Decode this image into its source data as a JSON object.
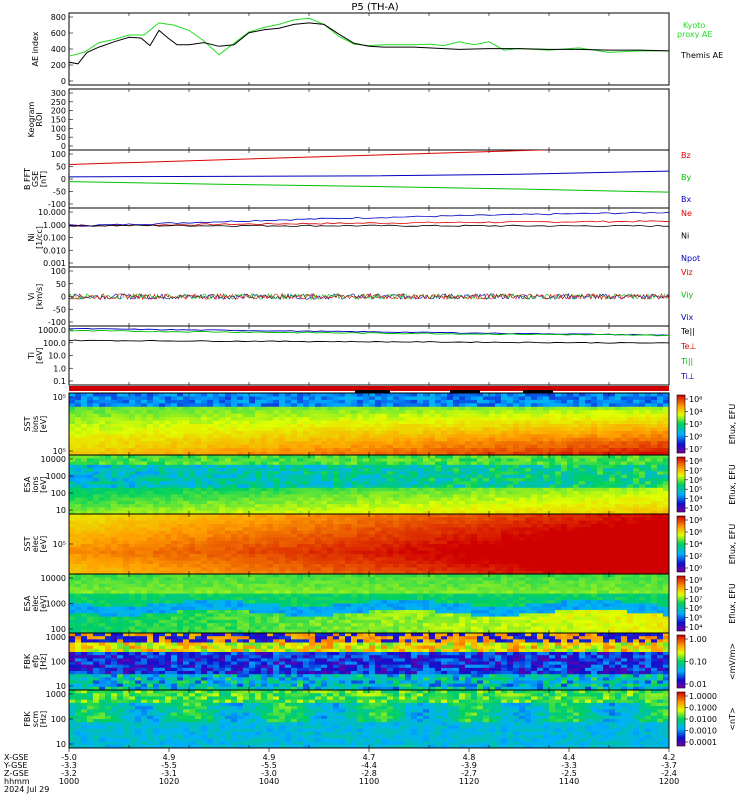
{
  "title": "P5 (TH-A)",
  "colors": {
    "red": "#e00000",
    "green": "#00c000",
    "blue": "#0000c0",
    "black": "#000000",
    "kyoto": "#22dd22"
  },
  "chart_data": [
    {
      "type": "line",
      "panel": "ae",
      "ylabel": "AE index",
      "yticks": [
        "800",
        "600",
        "400",
        "200",
        "0"
      ],
      "ylim": [
        -100,
        850
      ],
      "legend": [
        "Kyoto",
        "proxy AE",
        "Themis AE"
      ],
      "series": [
        {
          "name": "Kyoto proxy AE",
          "color": "#22dd22",
          "x": [
            1000,
            1005,
            1010,
            1015,
            1020,
            1025,
            1030,
            1035,
            1040,
            1045,
            1050,
            1055,
            1060,
            1065,
            1070,
            1075,
            1080,
            1085,
            1090,
            1095,
            1100,
            1105,
            1110,
            1115,
            1120,
            1125,
            1130,
            1135,
            1140,
            1145,
            1150,
            1160,
            1170,
            1180,
            1190,
            1200
          ],
          "values": [
            280,
            330,
            460,
            500,
            560,
            560,
            720,
            690,
            620,
            480,
            300,
            450,
            600,
            660,
            700,
            760,
            780,
            700,
            540,
            440,
            420,
            430,
            430,
            430,
            440,
            420,
            470,
            430,
            470,
            360,
            380,
            360,
            390,
            330,
            350,
            350
          ]
        },
        {
          "name": "Themis AE",
          "color": "#000000",
          "x": [
            1000,
            1003,
            1006,
            1010,
            1015,
            1020,
            1024,
            1027,
            1030,
            1033,
            1036,
            1040,
            1045,
            1050,
            1055,
            1060,
            1065,
            1070,
            1075,
            1080,
            1085,
            1090,
            1095,
            1100,
            1105,
            1110,
            1115,
            1120,
            1130,
            1140,
            1150,
            1160,
            1170,
            1180,
            1190,
            1200
          ],
          "values": [
            200,
            180,
            330,
            400,
            470,
            530,
            520,
            420,
            620,
            520,
            430,
            430,
            460,
            410,
            430,
            590,
            630,
            650,
            700,
            720,
            700,
            570,
            450,
            410,
            400,
            400,
            400,
            390,
            370,
            380,
            380,
            370,
            370,
            360,
            360,
            350
          ]
        }
      ]
    },
    {
      "type": "line",
      "panel": "keogram",
      "ylabel": "Keogram",
      "ylabel2": "ROI",
      "yticks": [
        "300",
        "250",
        "200",
        "150",
        "100",
        "50",
        "0"
      ]
    },
    {
      "type": "line",
      "panel": "bfield",
      "ylabel": "B FFT",
      "ylabel2": "GSE",
      "ylabel3": "[nT]",
      "yticks": [
        "100",
        "50",
        "0",
        "-50",
        "-100"
      ],
      "ylim": [
        -110,
        110
      ],
      "legend": [
        "Bz",
        "By",
        "Bx"
      ],
      "series": [
        {
          "name": "Bz",
          "color": "#e00000",
          "x": [
            1000,
            1200
          ],
          "values": [
            55,
            125
          ]
        },
        {
          "name": "By",
          "color": "#0000c0",
          "x": [
            1000,
            1050,
            1100,
            1150,
            1200
          ],
          "values": [
            8,
            10,
            12,
            18,
            30
          ]
        },
        {
          "name": "Bx",
          "color": "#00c000",
          "x": [
            1000,
            1050,
            1100,
            1150,
            1200
          ],
          "values": [
            -10,
            -20,
            -28,
            -38,
            -50
          ]
        }
      ]
    },
    {
      "type": "line",
      "panel": "density",
      "ylabel": "Ni",
      "ylabel2": "[1/cc]",
      "yticks": [
        "10.000",
        "1.000",
        "0.100",
        "0.010",
        "0.001"
      ],
      "legend": [
        "Ne",
        "Ni",
        "Npot"
      ],
      "series": [
        {
          "name": "Ne",
          "color": "#e00000",
          "x": [
            1000,
            1100,
            1200
          ],
          "values": [
            1.3,
            2.0,
            3.0
          ]
        },
        {
          "name": "Ni",
          "color": "#0000c0",
          "x": [
            1000,
            1100,
            1200
          ],
          "values": [
            1.4,
            3.6,
            14
          ]
        },
        {
          "name": "Npot",
          "color": "#000000",
          "x": [
            1000,
            1100,
            1200
          ],
          "values": [
            1.4,
            1.3,
            1.3
          ]
        }
      ]
    },
    {
      "type": "line",
      "panel": "velocity",
      "ylabel": "Vi",
      "ylabel2": "[km/s]",
      "yticks": [
        "100",
        "50",
        "0",
        "-50",
        "-100"
      ],
      "ylim": [
        -150,
        150
      ],
      "legend": [
        "Viz",
        "Viy",
        "Vix"
      ]
    },
    {
      "type": "line",
      "panel": "temperature",
      "ylabel": "Ti",
      "ylabel2": "[eV]",
      "yticks": [
        "1000.0",
        "100.0",
        "10.0",
        "1.0",
        "0.1"
      ],
      "legend": [
        "Te||",
        "Te⊥",
        "Ti||",
        "Ti⊥"
      ],
      "series": [
        {
          "name": "Ti",
          "color": "#0000c0",
          "x": [
            1000,
            1050,
            1100,
            1150,
            1200
          ],
          "values": [
            3000,
            1800,
            1100,
            900,
            850
          ]
        },
        {
          "name": "Te",
          "color": "#000000",
          "x": [
            1000,
            1050,
            1100,
            1150,
            1200
          ],
          "values": [
            300,
            260,
            220,
            200,
            180
          ]
        }
      ]
    },
    {
      "type": "heatmap",
      "panel": "sst-ion",
      "ylabel": "SST",
      "ylabel2": "ions",
      "ylabel3": "[eV]",
      "yticks": [
        "10⁵",
        "10⁵"
      ],
      "cbar_label": "Eflux, EFU",
      "cbar_ticks": [
        "10⁸",
        "10⁴",
        "10³",
        "10⁰",
        "10⁷"
      ]
    },
    {
      "type": "heatmap",
      "panel": "esa-ion",
      "ylabel": "ESA",
      "ylabel2": "ions",
      "ylabel3": "[eV]",
      "yticks": [
        "10000",
        "1000",
        "100",
        "10"
      ],
      "cbar_label": "Eflux, EFU",
      "cbar_ticks": [
        "10⁸",
        "10⁷",
        "10⁶",
        "10⁵",
        "10⁴",
        "10³"
      ]
    },
    {
      "type": "heatmap",
      "panel": "sst-elec",
      "ylabel": "SST",
      "ylabel2": "elec",
      "ylabel3": "[eV]",
      "yticks": [
        "10⁵"
      ],
      "cbar_label": "Eflux, EFU",
      "cbar_ticks": [
        "10⁸",
        "10⁶",
        "10⁴",
        "10²",
        "10⁰"
      ]
    },
    {
      "type": "heatmap",
      "panel": "esa-elec",
      "ylabel": "ESA",
      "ylabel2": "elec",
      "ylabel3": "[eV]",
      "yticks": [
        "10000",
        "1000",
        "100"
      ],
      "cbar_label": "Eflux, EFU",
      "cbar_ticks": [
        "10⁹",
        "10⁸",
        "10⁷",
        "10⁶",
        "10⁵",
        "10⁴"
      ]
    },
    {
      "type": "heatmap",
      "panel": "fbk-e",
      "ylabel": "FBK",
      "ylabel2": "efp",
      "ylabel3": "[Hz]",
      "yticks": [
        "1000",
        "100",
        "10"
      ],
      "cbar_label": "<mV/m>",
      "cbar_ticks": [
        "1.00",
        "0.10",
        "0.01"
      ]
    },
    {
      "type": "heatmap",
      "panel": "fbk-b",
      "ylabel": "FBK",
      "ylabel2": "scm",
      "ylabel3": "[Hz]",
      "yticks": [
        "1000",
        "100",
        "10"
      ],
      "cbar_label": "<nT>",
      "cbar_ticks": [
        "1.0000",
        "0.1000",
        "0.0100",
        "0.0010",
        "0.0001"
      ]
    }
  ],
  "ephemeris": {
    "labels": [
      "X-GSE",
      "Y-GSE",
      "Z-GSE",
      "hhmm",
      "2024 Jul 29"
    ],
    "columns": [
      {
        "x": "-5.0",
        "y": "-3.3",
        "z": "-3.2",
        "t": "1000"
      },
      {
        "x": "4.9",
        "y": "-5.5",
        "z": "-3.1",
        "t": "1020"
      },
      {
        "x": "4.9",
        "y": "-5.5",
        "z": "-3.0",
        "t": "1040"
      },
      {
        "x": "4.7",
        "y": "-4.4",
        "z": "-2.8",
        "t": "1100"
      },
      {
        "x": "4.8",
        "y": "-3.9",
        "z": "-2.7",
        "t": "1120"
      },
      {
        "x": "4.4",
        "y": "-3.3",
        "z": "-2.5",
        "t": "1140"
      },
      {
        "x": "4.2",
        "y": "-3.7",
        "z": "-2.4",
        "t": "1200"
      }
    ]
  }
}
